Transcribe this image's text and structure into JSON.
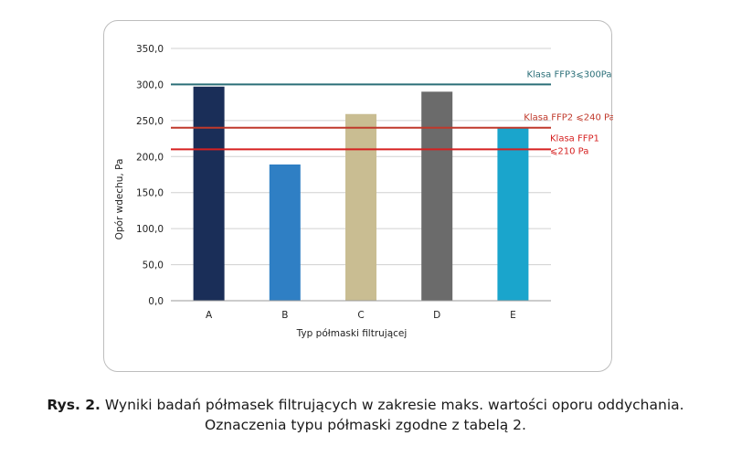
{
  "chart_data": {
    "type": "bar",
    "categories": [
      "A",
      "B",
      "C",
      "D",
      "E"
    ],
    "values": [
      297,
      189,
      259,
      290,
      240
    ],
    "xlabel": "Typ półmaski filtrującej",
    "ylabel": "Opór wdechu, Pa",
    "ylim": [
      0,
      350
    ],
    "yticks": [
      "0,0",
      "50,0",
      "100,0",
      "150,0",
      "200,0",
      "250,0",
      "300,0",
      "350,0"
    ],
    "grid": true,
    "bar_colors": [
      "#1a2e58",
      "#2f7fc4",
      "#c9bd92",
      "#6b6b6b",
      "#1aa5cc"
    ],
    "reference_lines": [
      {
        "label_lines": [
          "Klasa FFP3⩽300Pa"
        ],
        "value": 300,
        "color": "#2b6f78"
      },
      {
        "label_lines": [
          "Klasa FFP2 ⩽240 Pa"
        ],
        "value": 240,
        "color": "#c0392b"
      },
      {
        "label_lines": [
          "Klasa FFP1",
          "⩽210 Pa"
        ],
        "value": 210,
        "color": "#d62020"
      }
    ]
  },
  "caption": {
    "prefix": "Rys. 2.",
    "line1": " Wyniki badań półmasek filtrujących w zakresie maks. wartości oporu oddychania.",
    "line2": "Oznaczenia typu półmaski zgodne z tabelą 2."
  }
}
